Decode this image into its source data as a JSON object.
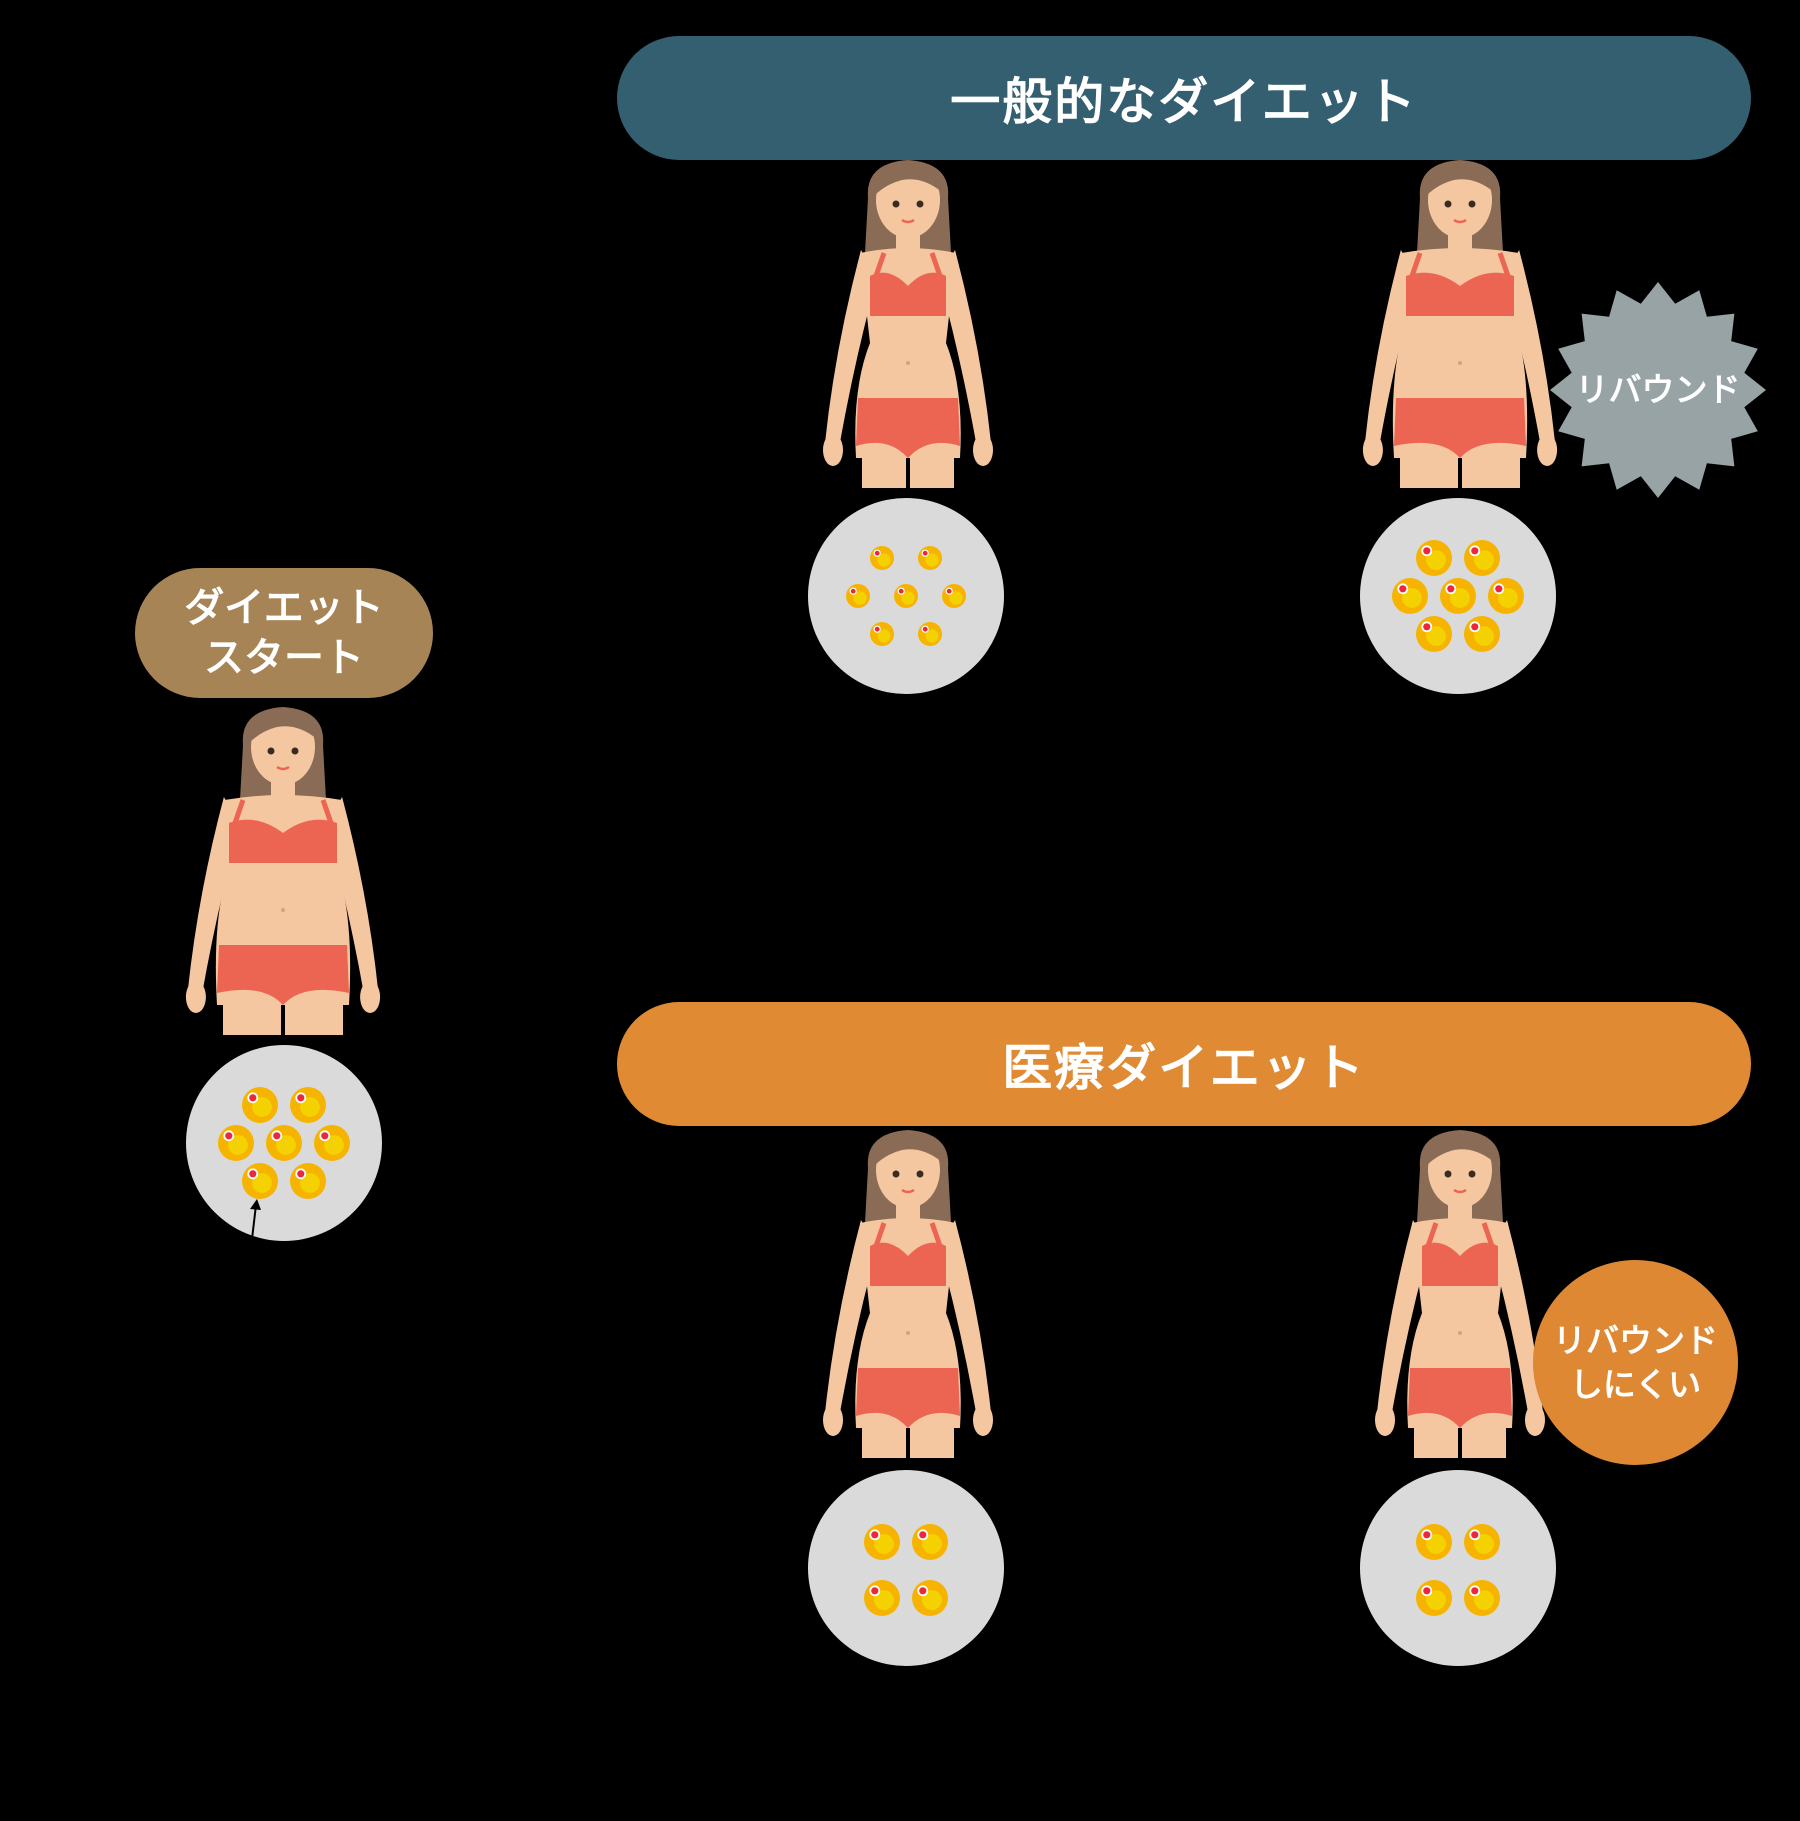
{
  "colors": {
    "background": "#000000",
    "general_banner": "#335F70",
    "medical_banner": "#E08A33",
    "start_pill": "#A68456",
    "rebound_badge": "#97A3A5",
    "hard_rebound_badge": "#DE8833",
    "skin": "#F5C7A1",
    "hair": "#8A6C56",
    "swimsuit": "#EC6553",
    "cell_circle": "#DADADA",
    "fat_cell": "#F6B400",
    "nucleus": "#E8283C"
  },
  "banners": {
    "general": "一般的なダイエット",
    "medical": "医療ダイエット"
  },
  "start": {
    "line1": "ダイエット",
    "line2": "スタート"
  },
  "badges": {
    "rebound": "リバウンド",
    "hard_rebound_line1": "リバウンド",
    "hard_rebound_line2": "しにくい"
  },
  "cells": {
    "start_count": 7,
    "general_after": 7,
    "general_rebound": 7,
    "medical_after": 4,
    "medical_later": 4
  },
  "icons": {
    "figure": "woman-swimsuit-icon",
    "fat_cell": "fat-cell-icon",
    "pointer": "arrow-pointer-icon"
  }
}
